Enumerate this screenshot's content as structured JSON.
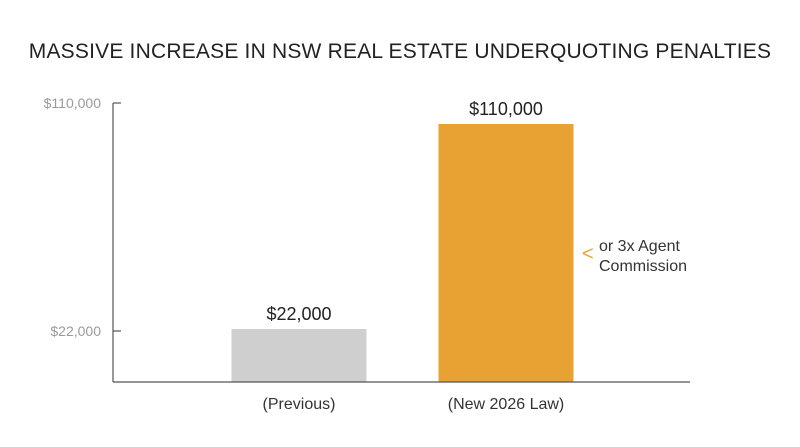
{
  "chart_data": {
    "type": "bar",
    "title": "MASSIVE INCREASE IN NSW REAL ESTATE UNDERQUOTING PENALTIES",
    "categories": [
      "(Previous)",
      "(New 2026 Law)"
    ],
    "values": [
      22000,
      110000
    ],
    "value_labels": [
      "$22,000",
      "$110,000"
    ],
    "y_ticks": [
      22000,
      110000
    ],
    "y_tick_labels": [
      "$22,000",
      "$110,000"
    ],
    "ylim": [
      0,
      110000
    ],
    "xlabel": "",
    "ylabel": "",
    "grid": false,
    "legend": "none",
    "annotation": {
      "lines": [
        "or 3x Agent",
        "Commission"
      ],
      "marker": "<",
      "target_category": "(New 2026 Law)"
    }
  },
  "colors": {
    "bars": [
      "#cfcfcf",
      "#e8a233"
    ],
    "annotation_marker": "#e8a233",
    "axis": "#555555"
  }
}
